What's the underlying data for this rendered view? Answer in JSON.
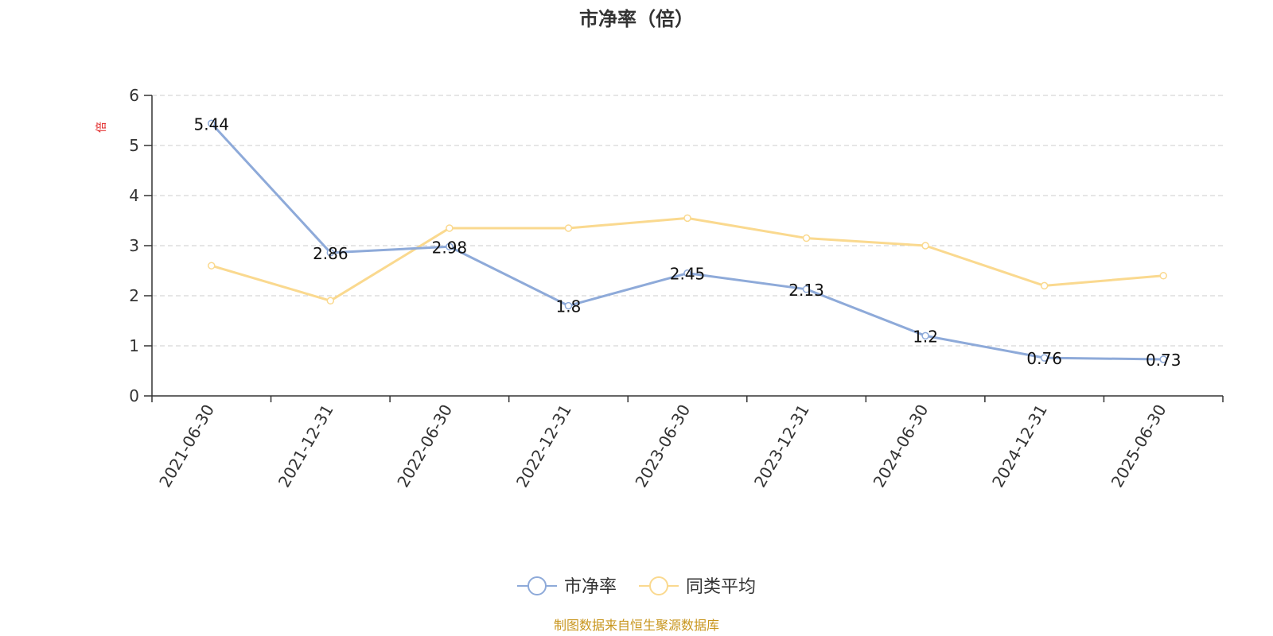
{
  "colors": {
    "series_main": "#8eaad9",
    "series_avg": "#fad98f",
    "axis": "#333333",
    "grid": "#cccccc",
    "unit": "#e02020",
    "source": "#c8961e"
  },
  "chart_data": {
    "type": "line",
    "title": "市净率（倍）",
    "ylabel": "倍",
    "xlabel": "",
    "ylim": [
      0,
      6
    ],
    "yticks": [
      0,
      1,
      2,
      3,
      4,
      5,
      6
    ],
    "grid": true,
    "legend_position": "bottom-center",
    "x": [
      "2021-06-30",
      "2021-12-31",
      "2022-06-30",
      "2022-12-31",
      "2023-06-30",
      "2023-12-31",
      "2024-06-30",
      "2024-12-31",
      "2025-06-30"
    ],
    "series": [
      {
        "name": "市净率",
        "values": [
          5.44,
          2.86,
          2.98,
          1.8,
          2.45,
          2.13,
          1.2,
          0.76,
          0.73
        ],
        "labels": [
          "5.44",
          "2.86",
          "2.98",
          "1.8",
          "2.45",
          "2.13",
          "1.2",
          "0.76",
          "0.73"
        ]
      },
      {
        "name": "同类平均",
        "values": [
          2.6,
          1.9,
          3.35,
          3.35,
          3.55,
          3.15,
          3.0,
          2.2,
          2.4
        ]
      }
    ]
  },
  "footer": {
    "source_text": "制图数据来自恒生聚源数据库"
  }
}
